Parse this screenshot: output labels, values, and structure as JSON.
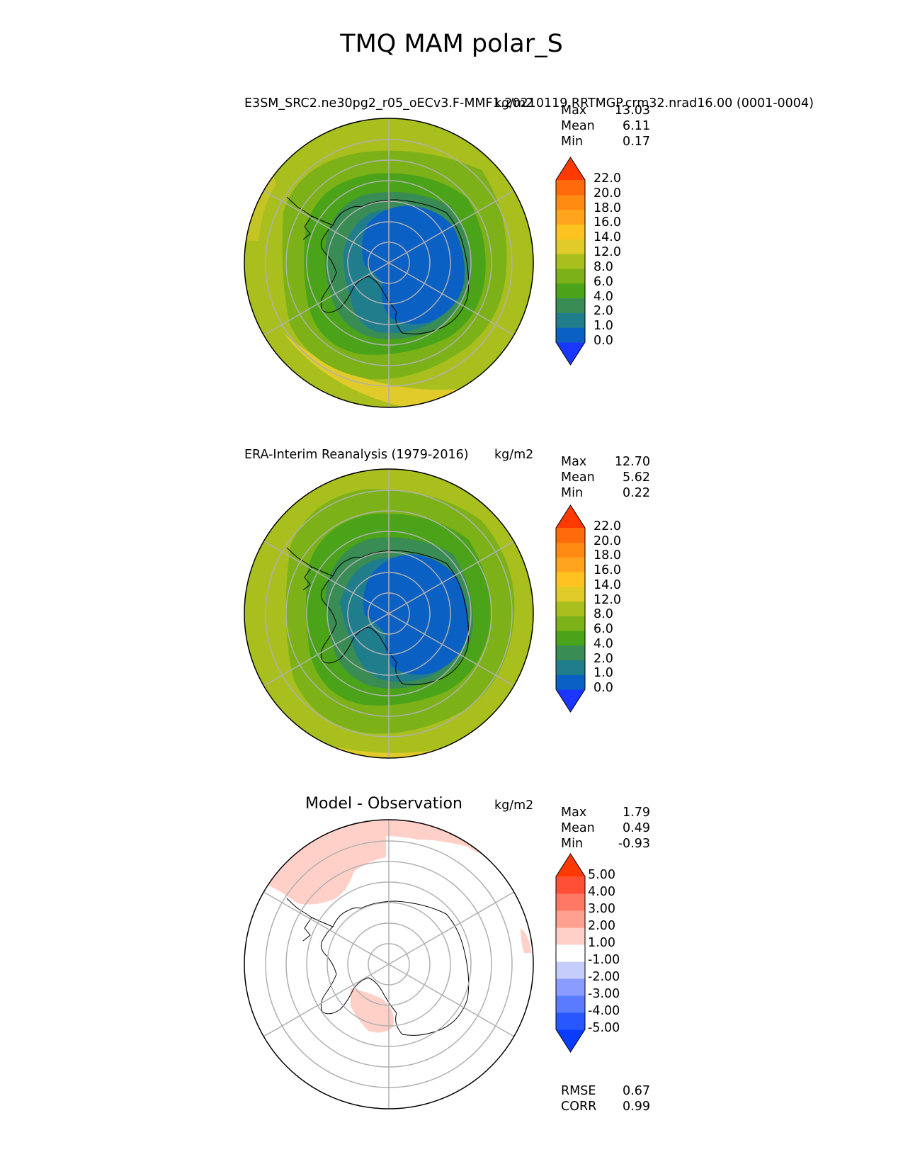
{
  "title": "TMQ MAM polar_S",
  "colors": {
    "seq": [
      "#1a36ff",
      "#0b60c4",
      "#1f7d8c",
      "#3a8c55",
      "#4aa318",
      "#7cb218",
      "#a9bf1e",
      "#e0cb2a",
      "#ffc321",
      "#ffa41c",
      "#ff8a12",
      "#ff6a0a",
      "#ff3a00"
    ],
    "diff": [
      "#0a3cff",
      "#2857ff",
      "#5a7bff",
      "#8a9cff",
      "#c5cdfa",
      "#ffffff",
      "#ffd0c8",
      "#ffa090",
      "#ff7864",
      "#ff5036",
      "#ff3a00"
    ],
    "grid": "#b0b0b0"
  },
  "chart_data": [
    {
      "type": "heatmap",
      "name": "test",
      "title": "E3SM_SRC2.ne30pg2_r05_oECv3.F-MMF1.20210119.RRTMGP.crm32.nrad16.00 (0001-0004)",
      "units": "kg/m2",
      "stats": {
        "max_label": "Max",
        "max": "13.03",
        "mean_label": "Mean",
        "mean": "6.11",
        "min_label": "Min",
        "min": "0.17"
      },
      "colorbar_levels": [
        "0.0",
        "1.0",
        "2.0",
        "4.0",
        "6.0",
        "8.0",
        "12.0",
        "14.0",
        "16.0",
        "18.0",
        "20.0",
        "22.0"
      ]
    },
    {
      "type": "heatmap",
      "name": "reference",
      "title": "ERA-Interim Reanalysis (1979-2016)",
      "units": "kg/m2",
      "stats": {
        "max_label": "Max",
        "max": "12.70",
        "mean_label": "Mean",
        "mean": "5.62",
        "min_label": "Min",
        "min": "0.22"
      },
      "colorbar_levels": [
        "0.0",
        "1.0",
        "2.0",
        "4.0",
        "6.0",
        "8.0",
        "12.0",
        "14.0",
        "16.0",
        "18.0",
        "20.0",
        "22.0"
      ]
    },
    {
      "type": "heatmap",
      "name": "difference",
      "title": "Model - Observation",
      "units": "kg/m2",
      "stats": {
        "max_label": "Max",
        "max": "1.79",
        "mean_label": "Mean",
        "mean": "0.49",
        "min_label": "Min",
        "min": "-0.93"
      },
      "colorbar_levels": [
        "-5.00",
        "-4.00",
        "-3.00",
        "-2.00",
        "-1.00",
        "1.00",
        "2.00",
        "3.00",
        "4.00",
        "5.00"
      ],
      "metrics": {
        "rmse_label": "RMSE",
        "rmse": "0.67",
        "corr_label": "CORR",
        "corr": "0.99"
      }
    }
  ]
}
